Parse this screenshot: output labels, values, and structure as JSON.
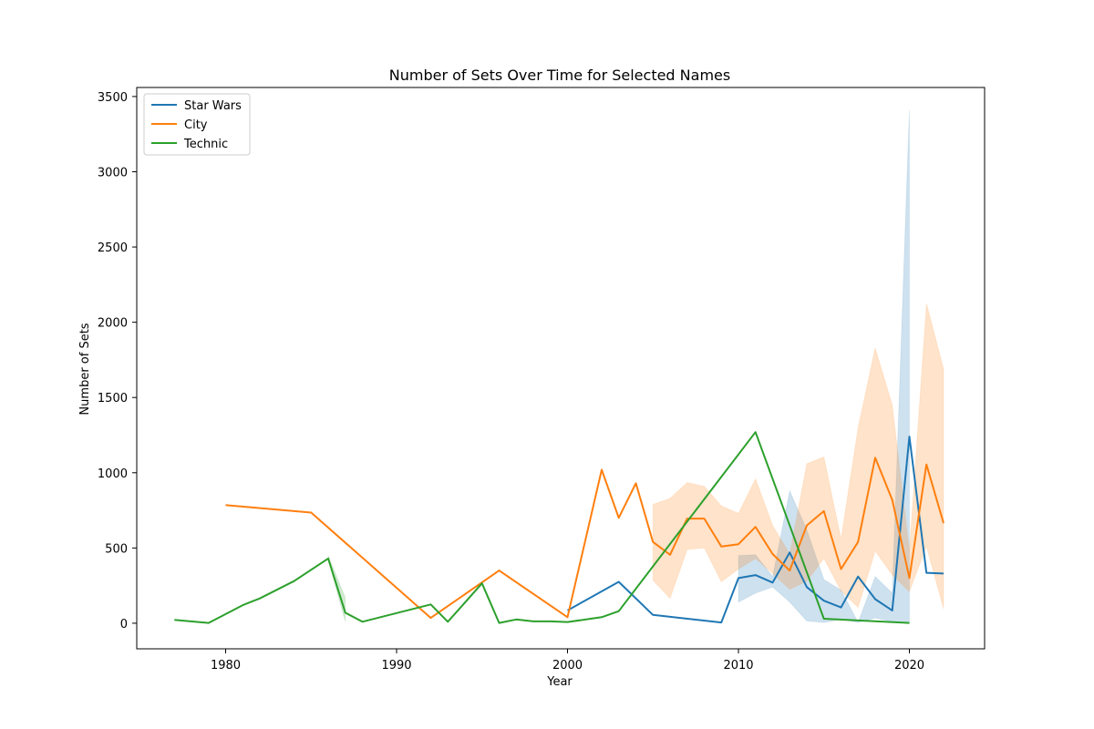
{
  "chart_data": {
    "type": "line",
    "title": "Number of Sets Over Time for Selected Names",
    "xlabel": "Year",
    "ylabel": "Number of Sets",
    "xlim": [
      1974.8,
      2024.4
    ],
    "ylim": [
      -170,
      3560
    ],
    "xticks": [
      1980,
      1990,
      2000,
      2010,
      2020
    ],
    "yticks": [
      0,
      500,
      1000,
      1500,
      2000,
      2500,
      3000,
      3500
    ],
    "grid": false,
    "legend_position": "top-left",
    "series": [
      {
        "name": "Star Wars",
        "color": "#1f77b4",
        "points": [
          [
            2000,
            85
          ],
          [
            2003,
            275
          ],
          [
            2005,
            55
          ],
          [
            2009,
            5
          ],
          [
            2010,
            300
          ],
          [
            2011,
            320
          ],
          [
            2012,
            270
          ],
          [
            2013,
            470
          ],
          [
            2014,
            240
          ],
          [
            2015,
            150
          ],
          [
            2016,
            105
          ],
          [
            2017,
            310
          ],
          [
            2018,
            160
          ],
          [
            2019,
            85
          ],
          [
            2020,
            1240
          ],
          [
            2021,
            335
          ],
          [
            2022,
            330
          ]
        ],
        "band": [
          [
            2010,
            140,
            450
          ],
          [
            2011,
            200,
            455
          ],
          [
            2012,
            240,
            310
          ],
          [
            2013,
            140,
            880
          ],
          [
            2014,
            15,
            620
          ],
          [
            2015,
            5,
            290
          ],
          [
            2016,
            25,
            220
          ],
          [
            2017,
            5,
            5
          ],
          [
            2018,
            35,
            310
          ],
          [
            2019,
            10,
            200
          ],
          [
            2020,
            5,
            3410
          ]
        ]
      },
      {
        "name": "City",
        "color": "#ff7f0e",
        "points": [
          [
            1980,
            785
          ],
          [
            1985,
            735
          ],
          [
            1992,
            35
          ],
          [
            1996,
            350
          ],
          [
            2000,
            40
          ],
          [
            2002,
            1020
          ],
          [
            2003,
            700
          ],
          [
            2004,
            930
          ],
          [
            2005,
            540
          ],
          [
            2006,
            455
          ],
          [
            2007,
            695
          ],
          [
            2008,
            695
          ],
          [
            2009,
            510
          ],
          [
            2010,
            525
          ],
          [
            2011,
            640
          ],
          [
            2012,
            460
          ],
          [
            2013,
            350
          ],
          [
            2014,
            650
          ],
          [
            2015,
            745
          ],
          [
            2016,
            360
          ],
          [
            2017,
            540
          ],
          [
            2018,
            1100
          ],
          [
            2019,
            820
          ],
          [
            2020,
            300
          ],
          [
            2021,
            1055
          ],
          [
            2022,
            665
          ]
        ],
        "band": [
          [
            2000,
            5,
            190
          ],
          [
            2005,
            285,
            790
          ],
          [
            2006,
            165,
            830
          ],
          [
            2007,
            490,
            935
          ],
          [
            2008,
            500,
            910
          ],
          [
            2009,
            275,
            780
          ],
          [
            2010,
            360,
            730
          ],
          [
            2011,
            430,
            960
          ],
          [
            2012,
            330,
            650
          ],
          [
            2013,
            225,
            460
          ],
          [
            2014,
            280,
            1060
          ],
          [
            2015,
            430,
            1105
          ],
          [
            2016,
            215,
            560
          ],
          [
            2017,
            105,
            1300
          ],
          [
            2018,
            480,
            1830
          ],
          [
            2019,
            320,
            1450
          ],
          [
            2020,
            210,
            480
          ],
          [
            2021,
            510,
            2125
          ],
          [
            2022,
            95,
            1690
          ]
        ]
      },
      {
        "name": "Technic",
        "color": "#2ca02c",
        "points": [
          [
            1977,
            22
          ],
          [
            1979,
            2
          ],
          [
            1981,
            120
          ],
          [
            1982,
            165
          ],
          [
            1984,
            280
          ],
          [
            1986,
            430
          ],
          [
            1987,
            70
          ],
          [
            1988,
            10
          ],
          [
            1992,
            125
          ],
          [
            1993,
            10
          ],
          [
            1995,
            265
          ],
          [
            1996,
            2
          ],
          [
            1997,
            25
          ],
          [
            1998,
            12
          ],
          [
            1999,
            12
          ],
          [
            2000,
            8
          ],
          [
            2002,
            40
          ],
          [
            2003,
            80
          ],
          [
            2011,
            1270
          ],
          [
            2015,
            30
          ],
          [
            2020,
            2
          ]
        ],
        "band": [
          [
            1986,
            420,
            450
          ],
          [
            1987,
            10,
            170
          ]
        ]
      }
    ]
  }
}
